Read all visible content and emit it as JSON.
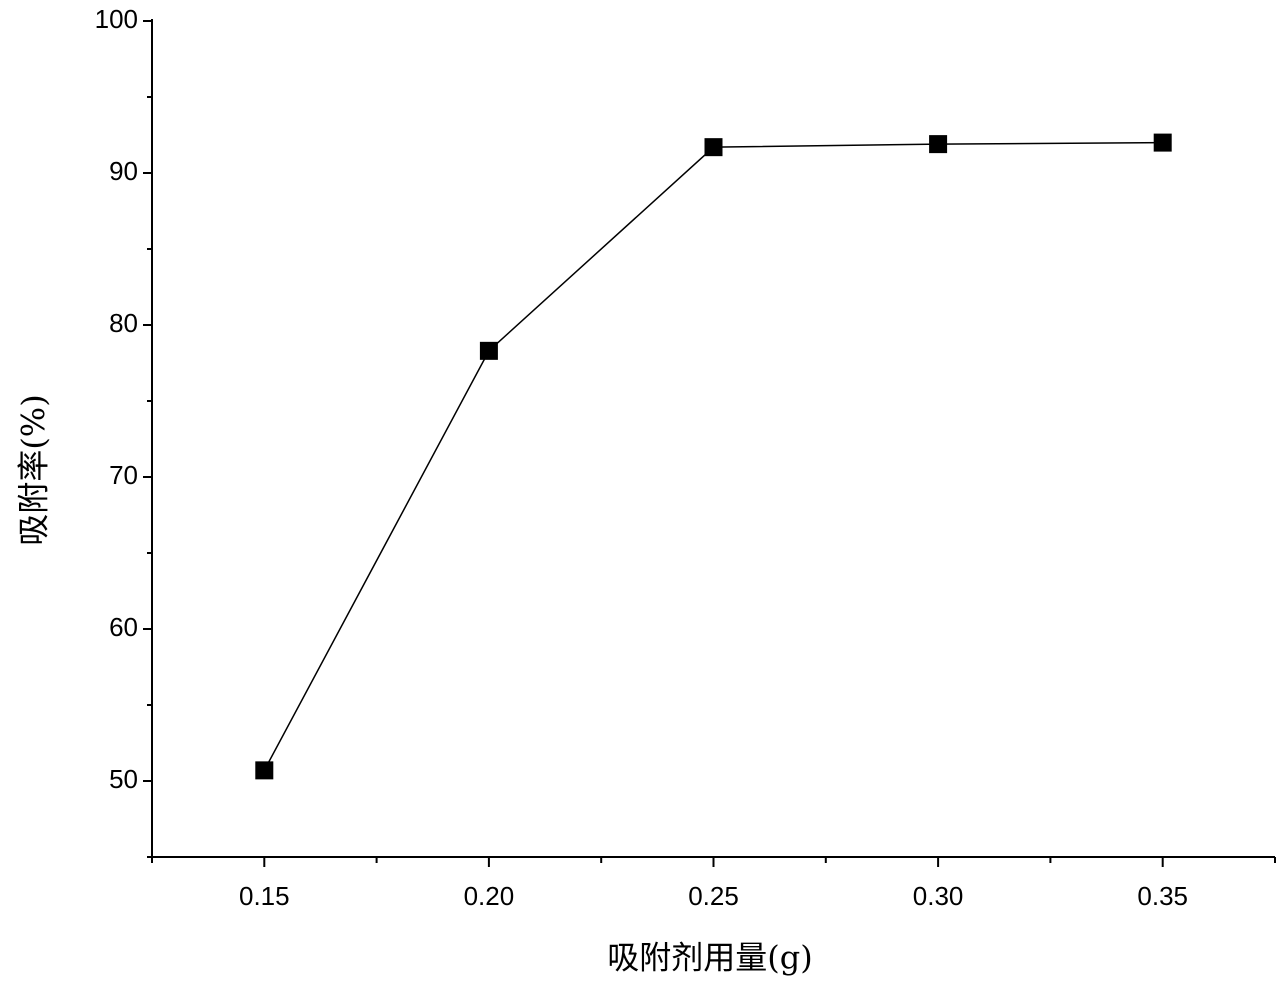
{
  "chart_data": {
    "type": "line",
    "x_label": "吸附剂用量(g)",
    "y_label": "吸附率(%)",
    "x": [
      0.15,
      0.2,
      0.25,
      0.3,
      0.35
    ],
    "series": [
      {
        "color": "#000000",
        "values": [
          50.7,
          78.3,
          91.7,
          91.9,
          92.0
        ]
      }
    ],
    "xlim": [
      0.125,
      0.375
    ],
    "xticks": [
      0.15,
      {
        "value": 0.2,
        "label": "0.20"
      },
      0.25,
      {
        "value": 0.3,
        "label": "0.30"
      },
      0.35
    ],
    "ylim": [
      45,
      100
    ],
    "yticks": [
      50,
      60,
      70,
      80,
      90,
      100
    ],
    "minor_ticks": true,
    "marker": "square"
  }
}
